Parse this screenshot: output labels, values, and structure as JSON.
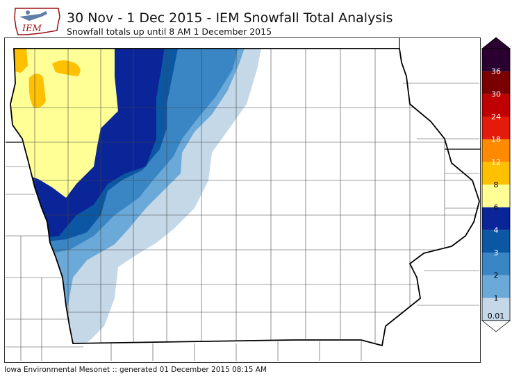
{
  "header": {
    "title": "30 Nov - 1 Dec 2015 - IEM Snowfall Total Analysis",
    "subtitle": "Snowfall totals up until 8 AM 1 December 2015"
  },
  "logo": {
    "text": "IEM"
  },
  "footer": {
    "text": "Iowa Environmental Mesonet :: generated 01 December 2015 08:15 AM"
  },
  "legend": {
    "levels": [
      {
        "label": "0.01",
        "color": "#c4d8e8"
      },
      {
        "label": "1",
        "color": "#6aa9d8"
      },
      {
        "label": "2",
        "color": "#3a86c4"
      },
      {
        "label": "3",
        "color": "#0b57a3"
      },
      {
        "label": "4",
        "color": "#0a2597"
      },
      {
        "label": "6",
        "color": "#ffff96"
      },
      {
        "label": "8",
        "color": "#ffc000"
      },
      {
        "label": "12",
        "color": "#ff8a00"
      },
      {
        "label": "18",
        "color": "#e41a0b"
      },
      {
        "label": "24",
        "color": "#c00000"
      },
      {
        "label": "30",
        "color": "#7a0000"
      },
      {
        "label": "36",
        "color": "#2a0030"
      }
    ]
  }
}
